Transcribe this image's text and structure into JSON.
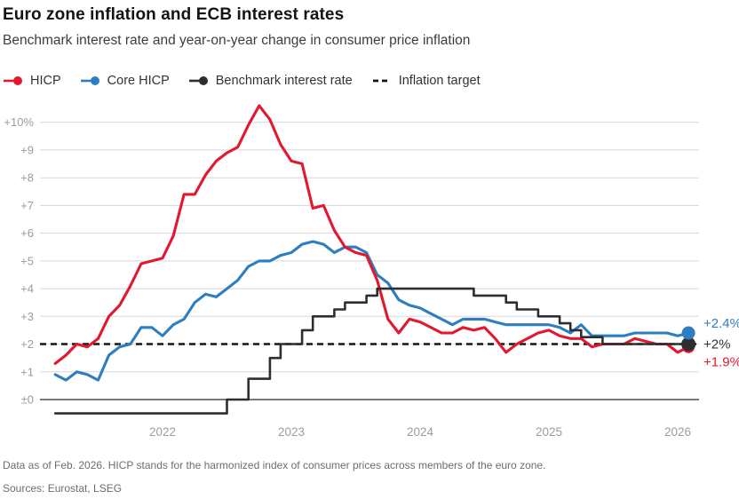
{
  "header": {
    "title": "Euro zone inflation and ECB interest rates",
    "subtitle": "Benchmark interest rate and year-on-year change in consumer price inflation"
  },
  "legend": {
    "items": [
      {
        "label": "HICP",
        "color": "#e2182f",
        "marker": "line-dot"
      },
      {
        "label": "Core HICP",
        "color": "#2d7ec0",
        "marker": "line-dot"
      },
      {
        "label": "Benchmark interest rate",
        "color": "#2e2e2e",
        "marker": "line-dot"
      },
      {
        "label": "Inflation target",
        "color": "#161616",
        "marker": "dashes"
      }
    ]
  },
  "chart_data": {
    "type": "line",
    "start_month": "2021-03",
    "end_month": "2026-02",
    "y_unit": "percent",
    "ylim": [
      -0.8,
      10.8
    ],
    "grid": "horizontal",
    "yticks": [
      {
        "v": 10,
        "label": "+10%"
      },
      {
        "v": 9,
        "label": "+9"
      },
      {
        "v": 8,
        "label": "+8"
      },
      {
        "v": 7,
        "label": "+7"
      },
      {
        "v": 6,
        "label": "+6"
      },
      {
        "v": 5,
        "label": "+5"
      },
      {
        "v": 4,
        "label": "+4"
      },
      {
        "v": 3,
        "label": "+3"
      },
      {
        "v": 2,
        "label": "+2"
      },
      {
        "v": 1,
        "label": "+1"
      },
      {
        "v": 0,
        "label": "±0"
      }
    ],
    "xticks": [
      {
        "label": "2022",
        "month_index": 10
      },
      {
        "label": "2023",
        "month_index": 22
      },
      {
        "label": "2024",
        "month_index": 34
      },
      {
        "label": "2025",
        "month_index": 46
      },
      {
        "label": "2026",
        "month_index": 58
      }
    ],
    "inflation_target": 2,
    "series": [
      {
        "name": "HICP",
        "color": "#e2182f",
        "style": "line",
        "values": [
          1.3,
          1.6,
          2.0,
          1.9,
          2.2,
          3.0,
          3.4,
          4.1,
          4.9,
          5.0,
          5.1,
          5.9,
          7.4,
          7.4,
          8.1,
          8.6,
          8.9,
          9.1,
          9.9,
          10.6,
          10.1,
          9.2,
          8.6,
          8.5,
          6.9,
          7.0,
          6.1,
          5.5,
          5.3,
          5.2,
          4.3,
          2.9,
          2.4,
          2.9,
          2.8,
          2.6,
          2.4,
          2.4,
          2.6,
          2.5,
          2.6,
          2.2,
          1.7,
          2.0,
          2.2,
          2.4,
          2.5,
          2.3,
          2.2,
          2.2,
          1.9,
          2.0,
          2.0,
          2.0,
          2.2,
          2.1,
          2.0,
          2.0,
          1.7,
          1.9
        ]
      },
      {
        "name": "Core HICP",
        "color": "#2d7ec0",
        "style": "line",
        "values": [
          0.9,
          0.7,
          1.0,
          0.9,
          0.7,
          1.6,
          1.9,
          2.0,
          2.6,
          2.6,
          2.3,
          2.7,
          2.9,
          3.5,
          3.8,
          3.7,
          4.0,
          4.3,
          4.8,
          5.0,
          5.0,
          5.2,
          5.3,
          5.6,
          5.7,
          5.6,
          5.3,
          5.5,
          5.5,
          5.3,
          4.5,
          4.2,
          3.6,
          3.4,
          3.3,
          3.1,
          2.9,
          2.7,
          2.9,
          2.9,
          2.9,
          2.8,
          2.7,
          2.7,
          2.7,
          2.7,
          2.7,
          2.6,
          2.4,
          2.7,
          2.3,
          2.3,
          2.3,
          2.3,
          2.4,
          2.4,
          2.4,
          2.4,
          2.3,
          2.4
        ]
      },
      {
        "name": "Benchmark interest rate",
        "color": "#2e2e2e",
        "style": "step",
        "values": [
          -0.5,
          -0.5,
          -0.5,
          -0.5,
          -0.5,
          -0.5,
          -0.5,
          -0.5,
          -0.5,
          -0.5,
          -0.5,
          -0.5,
          -0.5,
          -0.5,
          -0.5,
          -0.5,
          0.0,
          0.0,
          0.75,
          0.75,
          1.5,
          2.0,
          2.0,
          2.5,
          3.0,
          3.0,
          3.25,
          3.5,
          3.5,
          3.75,
          4.0,
          4.0,
          4.0,
          4.0,
          4.0,
          4.0,
          4.0,
          4.0,
          4.0,
          3.75,
          3.75,
          3.75,
          3.5,
          3.25,
          3.25,
          3.0,
          3.0,
          2.75,
          2.5,
          2.25,
          2.25,
          2.0,
          2.0,
          2.0,
          2.0,
          2.0,
          2.0,
          2.0,
          2.0,
          2.0
        ]
      }
    ],
    "end_labels": [
      {
        "text": "+2.4%",
        "series": "Core HICP",
        "color": "#2d7ec0"
      },
      {
        "text": "+2%",
        "series": "Benchmark interest rate",
        "color": "#333333"
      },
      {
        "text": "+1.9%",
        "series": "HICP",
        "color": "#e2182f"
      }
    ],
    "colors": {
      "gridline": "#d8d8d8",
      "zero_line": "#4d4d4d",
      "axis_text": "#9c9c9c",
      "target_dash": "#161616"
    }
  },
  "footer": {
    "note": "Data as of Feb. 2026. HICP stands for the harmonized index of consumer prices across members of the euro zone.",
    "sources": "Sources: Eurostat, LSEG"
  }
}
